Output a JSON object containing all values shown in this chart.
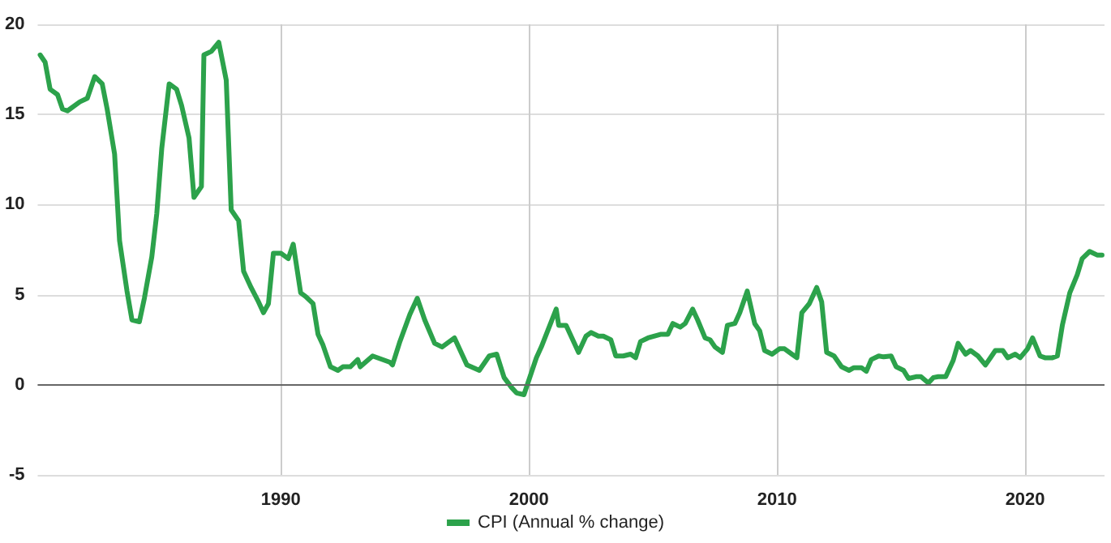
{
  "chart_data": {
    "type": "line",
    "x": [
      1980.3,
      1980.5,
      1980.7,
      1981.0,
      1981.2,
      1981.4,
      1981.9,
      1982.2,
      1982.5,
      1982.8,
      1983.0,
      1983.3,
      1983.5,
      1983.8,
      1984.0,
      1984.3,
      1984.5,
      1984.8,
      1985.0,
      1985.2,
      1985.5,
      1985.8,
      1986.0,
      1986.3,
      1986.5,
      1986.8,
      1986.9,
      1987.2,
      1987.5,
      1987.8,
      1988.0,
      1988.3,
      1988.5,
      1988.8,
      1989.1,
      1989.3,
      1989.5,
      1989.7,
      1990.0,
      1990.3,
      1990.5,
      1990.8,
      1991.0,
      1991.3,
      1991.5,
      1991.7,
      1992.0,
      1992.3,
      1992.5,
      1992.8,
      1993.1,
      1993.2,
      1993.7,
      1994.4,
      1994.5,
      1994.8,
      1995.2,
      1995.5,
      1995.8,
      1996.2,
      1996.5,
      1996.8,
      1997.0,
      1997.5,
      1998.0,
      1998.4,
      1998.7,
      1999.0,
      1999.3,
      1999.5,
      1999.8,
      2000.3,
      2000.5,
      2001.1,
      2001.2,
      2001.5,
      2002.0,
      2002.3,
      2002.5,
      2002.8,
      2003.0,
      2003.3,
      2003.5,
      2003.8,
      2004.1,
      2004.3,
      2004.5,
      2004.8,
      2005.3,
      2005.6,
      2005.8,
      2006.1,
      2006.3,
      2006.6,
      2006.8,
      2007.1,
      2007.3,
      2007.5,
      2007.8,
      2008.0,
      2008.3,
      2008.5,
      2008.8,
      2009.1,
      2009.3,
      2009.5,
      2009.8,
      2010.1,
      2010.3,
      2010.6,
      2010.8,
      2011.0,
      2011.3,
      2011.6,
      2011.8,
      2012.0,
      2012.3,
      2012.6,
      2012.9,
      2013.1,
      2013.4,
      2013.6,
      2013.8,
      2014.1,
      2014.3,
      2014.6,
      2014.8,
      2015.1,
      2015.3,
      2015.6,
      2015.8,
      2016.1,
      2016.3,
      2016.5,
      2016.8,
      2017.1,
      2017.3,
      2017.6,
      2017.8,
      2018.1,
      2018.4,
      2018.6,
      2018.8,
      2019.1,
      2019.3,
      2019.6,
      2019.8,
      2020.1,
      2020.3,
      2020.6,
      2020.8,
      2021.1,
      2021.3,
      2021.5,
      2021.8,
      2022.1,
      2022.3,
      2022.6,
      2022.9,
      2023.1
    ],
    "series": [
      {
        "name": "CPI (Annual % change)",
        "color": "#2ca24b",
        "values": [
          18.3,
          17.9,
          16.4,
          16.1,
          15.3,
          15.2,
          15.7,
          15.9,
          17.1,
          16.7,
          15.3,
          12.8,
          8.0,
          5.2,
          3.6,
          3.5,
          4.8,
          7.1,
          9.5,
          13.1,
          16.7,
          16.4,
          15.5,
          13.7,
          10.4,
          11.0,
          18.3,
          18.5,
          19.0,
          16.9,
          9.7,
          9.1,
          6.3,
          5.4,
          4.6,
          4.0,
          4.5,
          7.3,
          7.3,
          7.0,
          7.8,
          5.1,
          4.9,
          4.5,
          2.8,
          2.2,
          1.0,
          0.8,
          1.0,
          1.0,
          1.4,
          1.0,
          1.6,
          1.25,
          1.1,
          2.4,
          3.9,
          4.8,
          3.6,
          2.3,
          2.1,
          2.4,
          2.6,
          1.1,
          0.8,
          1.6,
          1.7,
          0.4,
          -0.15,
          -0.45,
          -0.55,
          1.5,
          2.1,
          4.2,
          3.3,
          3.3,
          1.8,
          2.7,
          2.9,
          2.7,
          2.7,
          2.5,
          1.6,
          1.6,
          1.7,
          1.5,
          2.4,
          2.6,
          2.8,
          2.8,
          3.4,
          3.2,
          3.4,
          4.2,
          3.6,
          2.6,
          2.5,
          2.1,
          1.8,
          3.3,
          3.4,
          4.0,
          5.2,
          3.4,
          3.0,
          1.9,
          1.7,
          2.0,
          2.0,
          1.7,
          1.5,
          4.0,
          4.5,
          5.4,
          4.6,
          1.8,
          1.6,
          1.0,
          0.8,
          0.95,
          0.95,
          0.75,
          1.4,
          1.6,
          1.55,
          1.6,
          1.0,
          0.8,
          0.35,
          0.45,
          0.45,
          0.1,
          0.4,
          0.45,
          0.45,
          1.35,
          2.3,
          1.7,
          1.9,
          1.6,
          1.1,
          1.5,
          1.9,
          1.9,
          1.5,
          1.7,
          1.5,
          2.0,
          2.6,
          1.6,
          1.5,
          1.5,
          1.6,
          3.3,
          5.1,
          6.1,
          7.0,
          7.4,
          7.2,
          7.2
        ]
      }
    ],
    "xlim": [
      1980.2,
      2023.2
    ],
    "xticks": [
      1990,
      2000,
      2010,
      2020
    ],
    "ylim": [
      -5,
      20
    ],
    "yticks": [
      -5,
      0,
      5,
      10,
      15,
      20
    ],
    "ref_lines": [
      {
        "axis": "y",
        "value": 0,
        "color": "#666666"
      }
    ],
    "grid": true,
    "legend": "bottom",
    "marker": "none",
    "line_style": "solid"
  }
}
